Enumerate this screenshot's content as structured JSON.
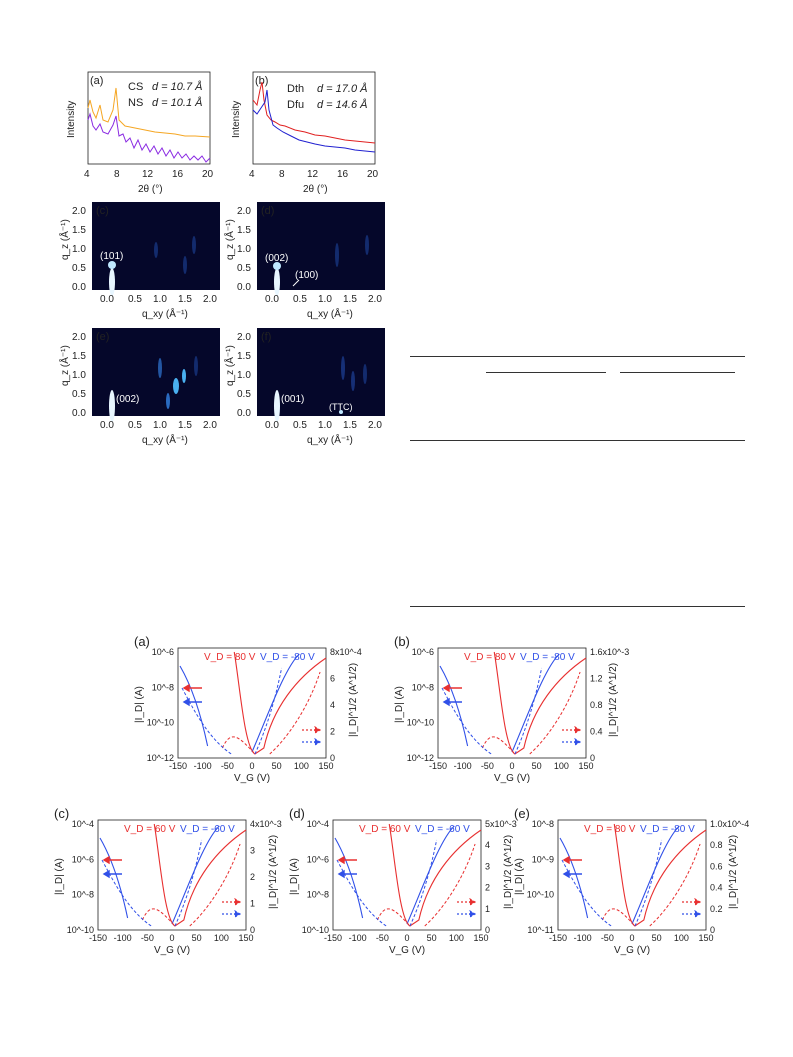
{
  "xrd": {
    "xlabel": "2θ (°)",
    "ylabel": "Intensity",
    "xticks": [
      "4",
      "8",
      "12",
      "16",
      "20"
    ],
    "a": {
      "label": "(a)",
      "legend": [
        {
          "name": "CS",
          "d": "d = 10.7 Å",
          "color": "#f5a623"
        },
        {
          "name": "NS",
          "d": "d = 10.1 Å",
          "color": "#8a2be2"
        }
      ]
    },
    "b": {
      "label": "(b)",
      "legend": [
        {
          "name": "Dth",
          "d": "d = 17.0 Å",
          "color": "#e02020"
        },
        {
          "name": "Dfu",
          "d": "d = 14.6 Å",
          "color": "#2020d0"
        }
      ]
    }
  },
  "giwaxs": {
    "xlabel": "q_xy (Å⁻¹)",
    "ylabel": "q_z (Å⁻¹)",
    "xticks": [
      "0.0",
      "0.5",
      "1.0",
      "1.5",
      "2.0"
    ],
    "yticks": [
      "0.0",
      "0.5",
      "1.0",
      "1.5",
      "2.0"
    ],
    "panels": [
      {
        "label": "(c)",
        "peaks": [
          "(101)"
        ]
      },
      {
        "label": "(d)",
        "peaks": [
          "(002)",
          "(100)"
        ]
      },
      {
        "label": "(e)",
        "peaks": [
          "(002)"
        ]
      },
      {
        "label": "(f)",
        "peaks": [
          "(001)",
          "(TTC)"
        ]
      }
    ]
  },
  "transfer": {
    "xlabel": "V_G (V)",
    "ylabel_left": "|I_D| (A)",
    "ylabel_right": "|I_D|^1/2 (A^1/2)",
    "xticks": [
      "-150",
      "-100",
      "-50",
      "0",
      "50",
      "100",
      "150"
    ],
    "colors": {
      "n": "#e83030",
      "p": "#3050e8"
    },
    "panels": [
      {
        "label": "(a)",
        "vd_n": "V_D = 80 V",
        "vd_p": "V_D = -80 V",
        "left_ticks": [
          "10^-6",
          "10^-8",
          "10^-10",
          "10^-12"
        ],
        "right_ticks": [
          "8x10^-4",
          "6",
          "4",
          "2",
          "0"
        ]
      },
      {
        "label": "(b)",
        "vd_n": "V_D = 80 V",
        "vd_p": "V_D = -80 V",
        "left_ticks": [
          "10^-6",
          "10^-8",
          "10^-10",
          "10^-12"
        ],
        "right_ticks": [
          "1.6x10^-3",
          "1.2",
          "0.8",
          "0.4",
          "0"
        ]
      },
      {
        "label": "(c)",
        "vd_n": "V_D = 60 V",
        "vd_p": "V_D = -60 V",
        "left_ticks": [
          "10^-4",
          "10^-6",
          "10^-8",
          "10^-10"
        ],
        "right_ticks": [
          "4x10^-3",
          "3",
          "2",
          "1",
          "0"
        ]
      },
      {
        "label": "(d)",
        "vd_n": "V_D = 60 V",
        "vd_p": "V_D = -60 V",
        "left_ticks": [
          "10^-4",
          "10^-6",
          "10^-8",
          "10^-10"
        ],
        "right_ticks": [
          "5x10^-3",
          "4",
          "3",
          "2",
          "1",
          "0"
        ]
      },
      {
        "label": "(e)",
        "vd_n": "V_D = 80 V",
        "vd_p": "V_D = -80 V",
        "left_ticks": [
          "10^-8",
          "10^-9",
          "10^-10",
          "10^-11"
        ],
        "right_ticks": [
          "1.0x10^-4",
          "0.8",
          "0.6",
          "0.4",
          "0.2",
          "0"
        ]
      }
    ]
  }
}
